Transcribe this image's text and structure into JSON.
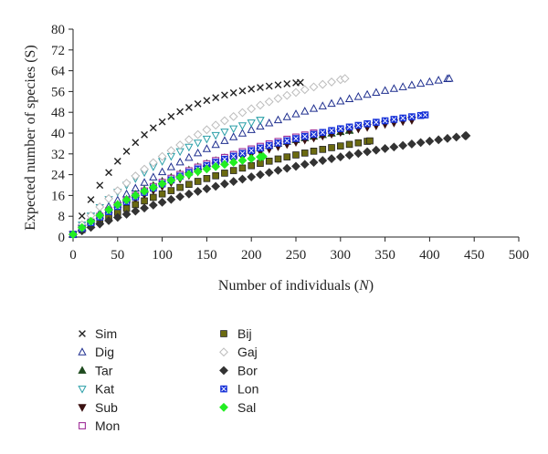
{
  "chart_data": {
    "type": "scatter",
    "title": "",
    "xlabel": "Number of individuals (",
    "xlabel_var": "N",
    "xlabel_end": ")",
    "ylabel": "Expected number of species (S)",
    "xlim": [
      0,
      500
    ],
    "ylim": [
      0,
      80
    ],
    "xticks": [
      "0",
      "50",
      "100",
      "150",
      "200",
      "250",
      "300",
      "350",
      "400",
      "450",
      "500"
    ],
    "yticks": [
      "0",
      "8",
      "16",
      "24",
      "32",
      "40",
      "48",
      "56",
      "64",
      "72",
      "80"
    ],
    "grid": false,
    "legend_position": "bottom-left",
    "series": [
      {
        "name": "Sim",
        "marker": "cross",
        "color": "#222222",
        "n_max": 255,
        "s_max": 59.5,
        "k": 1.05
      },
      {
        "name": "Dig",
        "marker": "triangle-up-open",
        "color": "#1f2f8f",
        "n_max": 422,
        "s_max": 61,
        "k": 0.55
      },
      {
        "name": "Tar",
        "marker": "triangle-up",
        "color": "#1e4a1e",
        "n_max": 310,
        "s_max": 41,
        "k": 0.55
      },
      {
        "name": "Kat",
        "marker": "triangle-down-open",
        "color": "#2a9fa8",
        "n_max": 210,
        "s_max": 45,
        "k": 0.45
      },
      {
        "name": "Sub",
        "marker": "triangle-down",
        "color": "#3a1010",
        "n_max": 380,
        "s_max": 45,
        "k": 0.5
      },
      {
        "name": "Mon",
        "marker": "square-open",
        "color": "#a0309a",
        "n_max": 270,
        "s_max": 40,
        "k": 0.4
      },
      {
        "name": "Bij",
        "marker": "square",
        "color": "#6b6a10",
        "n_max": 333,
        "s_max": 37,
        "k": 0.4
      },
      {
        "name": "Gaj",
        "marker": "diamond-open",
        "color": "#bcbcbc",
        "n_max": 305,
        "s_max": 61,
        "k": 0.5
      },
      {
        "name": "Bor",
        "marker": "diamond",
        "color": "#333333",
        "n_max": 441,
        "s_max": 39,
        "k": 0.35
      },
      {
        "name": "Lon",
        "marker": "square-x",
        "color": "#1530d8",
        "n_max": 395,
        "s_max": 47,
        "k": 0.55
      },
      {
        "name": "Sal",
        "marker": "diamond",
        "color": "#22ee22",
        "n_max": 213,
        "s_max": 31,
        "k": 0.5
      }
    ]
  }
}
